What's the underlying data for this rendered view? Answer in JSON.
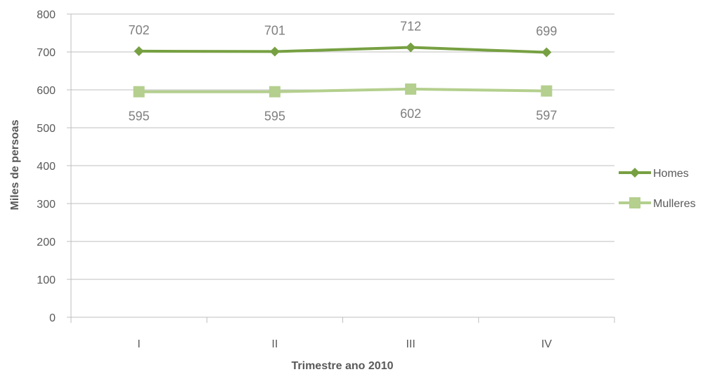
{
  "chart_data": {
    "type": "line",
    "title": "",
    "xlabel": "Trimestre ano 2010",
    "ylabel": "Miles de persoas",
    "categories": [
      "I",
      "II",
      "III",
      "IV"
    ],
    "ylim": [
      0,
      800
    ],
    "yticks": [
      0,
      100,
      200,
      300,
      400,
      500,
      600,
      700,
      800
    ],
    "grid": true,
    "legend_position": "right",
    "series": [
      {
        "name": "Homes",
        "values": [
          702,
          701,
          712,
          699
        ],
        "color": "#77a042",
        "marker": "diamond",
        "label_position": "above"
      },
      {
        "name": "Mulleres",
        "values": [
          595,
          595,
          602,
          597
        ],
        "color": "#b4cf8e",
        "marker": "square",
        "label_position": "below"
      }
    ]
  }
}
